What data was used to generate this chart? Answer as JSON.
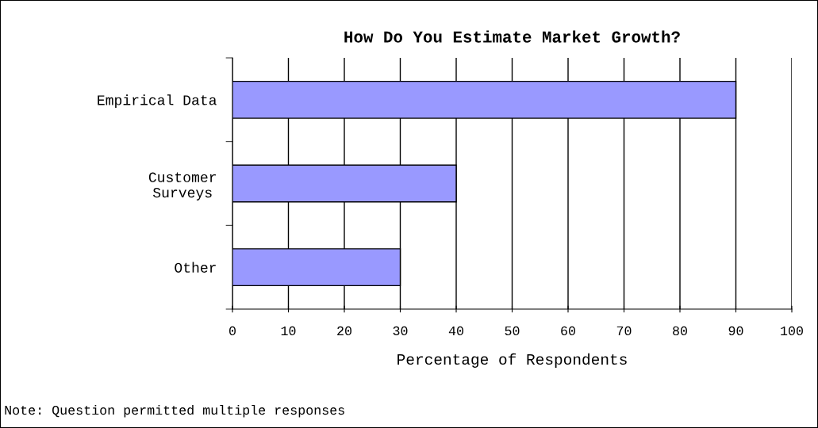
{
  "chart_data": {
    "type": "bar",
    "orientation": "horizontal",
    "title": "How Do You Estimate Market Growth?",
    "categories": [
      "Empirical Data",
      "Customer\nSurveys",
      "Other"
    ],
    "values": [
      90,
      40,
      30
    ],
    "color": "#9999ff",
    "xlabel": "Percentage of Respondents",
    "xlim": [
      0,
      100
    ],
    "xticks": [
      0,
      10,
      20,
      30,
      40,
      50,
      60,
      70,
      80,
      90,
      100
    ],
    "grid": "x",
    "annotations": [
      "Note: Question permitted multiple responses"
    ]
  }
}
